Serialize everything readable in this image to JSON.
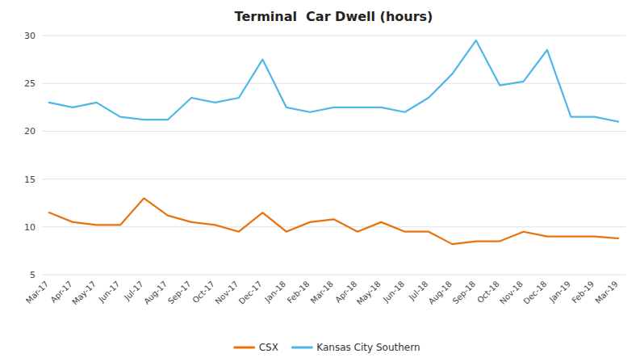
{
  "chart_data": {
    "type": "line",
    "title": "Terminal  Car Dwell (hours)",
    "categories": [
      "Mar-17",
      "Apr-17",
      "May-17",
      "Jun-17",
      "Jul-17",
      "Aug-17",
      "Sep-17",
      "Oct-17",
      "Nov-17",
      "Dec-17",
      "Jan-18",
      "Feb-18",
      "Mar-18",
      "Apr-18",
      "May-18",
      "Jun-18",
      "Jul-18",
      "Aug-18",
      "Sep-18",
      "Oct-18",
      "Nov-18",
      "Dec-18",
      "Jan-19",
      "Feb-19",
      "Mar-19"
    ],
    "series": [
      {
        "name": "CSX",
        "color": "#e8720c",
        "values": [
          11.5,
          10.5,
          10.2,
          10.2,
          13.0,
          11.2,
          10.5,
          10.2,
          9.5,
          11.5,
          9.5,
          10.5,
          10.8,
          9.5,
          10.5,
          9.5,
          9.5,
          8.2,
          8.5,
          8.5,
          9.5,
          9.0,
          9.0,
          9.0,
          8.8
        ]
      },
      {
        "name": "Kansas City Southern",
        "color": "#4db8e8",
        "values": [
          23.0,
          22.5,
          23.0,
          21.5,
          21.2,
          21.2,
          23.5,
          23.0,
          23.5,
          27.5,
          22.5,
          22.0,
          22.5,
          22.5,
          22.5,
          22.0,
          23.5,
          26.0,
          29.5,
          24.8,
          25.2,
          28.5,
          21.5,
          21.5,
          21.0
        ]
      }
    ],
    "ylim": [
      5,
      30
    ],
    "yticks": [
      5,
      10,
      15,
      20,
      25,
      30
    ],
    "grid": true,
    "legend": "bottom"
  }
}
